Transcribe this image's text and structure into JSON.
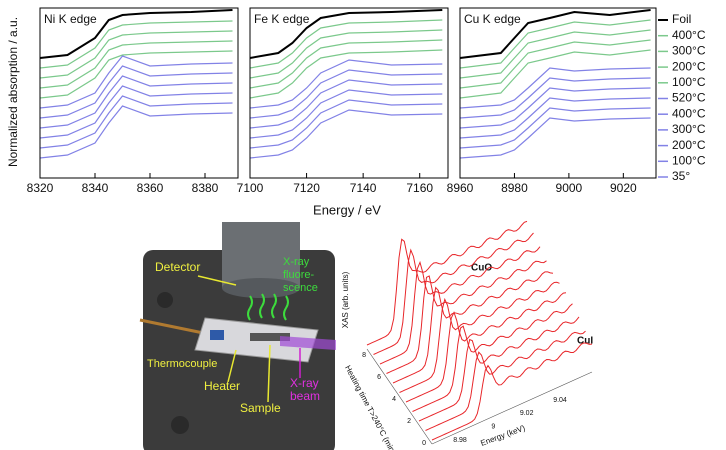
{
  "chart_data": [
    {
      "type": "line",
      "title": "Ni K edge",
      "y_label": "Normalized absorption / a.u.",
      "x": [
        8320,
        8330,
        8340,
        8345,
        8350,
        8360,
        8375,
        8390
      ],
      "xlim": [
        8320,
        8392
      ],
      "xticks": [
        8320,
        8340,
        8360,
        8380
      ],
      "ylim": [
        0,
        17
      ],
      "series": [
        {
          "name": "Foil",
          "color": "#000000",
          "values": [
            12,
            12.3,
            14,
            15.8,
            16.3,
            16.5,
            16.6,
            16.8
          ]
        },
        {
          "name": "400°C",
          "color": "#7cc98c",
          "values": [
            11,
            11.3,
            13,
            14.8,
            15.3,
            15.5,
            15.6,
            15.7
          ]
        },
        {
          "name": "300°C",
          "color": "#7cc98c",
          "values": [
            10,
            10.3,
            12,
            13.8,
            14.3,
            14.5,
            14.6,
            14.7
          ]
        },
        {
          "name": "200°C",
          "color": "#7cc98c",
          "values": [
            9,
            9.3,
            11,
            12.8,
            13.3,
            13.5,
            13.6,
            13.7
          ]
        },
        {
          "name": "100°C",
          "color": "#7cc98c",
          "values": [
            8,
            8.3,
            10,
            11.8,
            12.3,
            12.5,
            12.6,
            12.7
          ]
        },
        {
          "name": "520°C",
          "color": "#8282e6",
          "values": [
            7,
            7.3,
            8.5,
            10.5,
            12.2,
            11.2,
            11.4,
            11.5
          ]
        },
        {
          "name": "400°C",
          "color": "#8282e6",
          "values": [
            6,
            6.3,
            7.5,
            9.5,
            11.2,
            10.2,
            10.4,
            10.5
          ]
        },
        {
          "name": "300°C",
          "color": "#8282e6",
          "values": [
            5,
            5.3,
            6.5,
            8.5,
            10.2,
            9.2,
            9.4,
            9.5
          ]
        },
        {
          "name": "200°C",
          "color": "#8282e6",
          "values": [
            4,
            4.3,
            5.5,
            7.5,
            9.2,
            8.2,
            8.4,
            8.5
          ]
        },
        {
          "name": "100°C",
          "color": "#8282e6",
          "values": [
            3,
            3.3,
            4.5,
            6.5,
            8.2,
            7.2,
            7.4,
            7.5
          ]
        },
        {
          "name": "35°",
          "color": "#8282e6",
          "values": [
            2,
            2.3,
            3.5,
            5.5,
            7.2,
            6.2,
            6.4,
            6.5
          ]
        }
      ]
    },
    {
      "type": "line",
      "title": "Fe K edge",
      "x_label": "Energy / eV",
      "x": [
        7100,
        7110,
        7115,
        7120,
        7125,
        7135,
        7150,
        7168
      ],
      "xlim": [
        7100,
        7170
      ],
      "xticks": [
        7100,
        7120,
        7140,
        7160
      ],
      "ylim": [
        0,
        17
      ],
      "series": [
        {
          "name": "Foil",
          "color": "#000000",
          "values": [
            12,
            12.5,
            13.5,
            15,
            16,
            16.5,
            16.6,
            16.8
          ]
        },
        {
          "name": "400°C",
          "color": "#7cc98c",
          "values": [
            11,
            11.5,
            12.5,
            14,
            15,
            15.5,
            15.6,
            15.8
          ]
        },
        {
          "name": "300°C",
          "color": "#7cc98c",
          "values": [
            10,
            10.5,
            11.5,
            13,
            14,
            14.5,
            14.6,
            14.8
          ]
        },
        {
          "name": "200°C",
          "color": "#7cc98c",
          "values": [
            9,
            9.5,
            10.5,
            12,
            13,
            13.5,
            13.6,
            13.8
          ]
        },
        {
          "name": "100°C",
          "color": "#7cc98c",
          "values": [
            8,
            8.5,
            9.5,
            11,
            12,
            12.5,
            12.6,
            12.8
          ]
        },
        {
          "name": "520°C",
          "color": "#8282e6",
          "values": [
            7,
            7.3,
            7.8,
            9,
            10.5,
            11.8,
            11.3,
            11.4
          ]
        },
        {
          "name": "400°C",
          "color": "#8282e6",
          "values": [
            6,
            6.3,
            6.8,
            8,
            9.5,
            10.8,
            10.3,
            10.4
          ]
        },
        {
          "name": "300°C",
          "color": "#8282e6",
          "values": [
            5,
            5.3,
            5.8,
            7,
            8.5,
            9.8,
            9.3,
            9.4
          ]
        },
        {
          "name": "200°C",
          "color": "#8282e6",
          "values": [
            4,
            4.3,
            4.8,
            6,
            7.5,
            8.8,
            8.3,
            8.4
          ]
        },
        {
          "name": "100°C",
          "color": "#8282e6",
          "values": [
            3,
            3.3,
            3.8,
            5,
            6.5,
            7.8,
            7.3,
            7.4
          ]
        },
        {
          "name": "35°",
          "color": "#8282e6",
          "values": [
            2,
            2.3,
            2.8,
            4,
            5.5,
            6.8,
            6.3,
            6.4
          ]
        }
      ]
    },
    {
      "type": "line",
      "title": "Cu K edge",
      "x": [
        8960,
        8975,
        8980,
        8985,
        8993,
        9002,
        9015,
        9030
      ],
      "xlim": [
        8960,
        9032
      ],
      "xticks": [
        8960,
        8980,
        9000,
        9020
      ],
      "ylim": [
        0,
        17
      ],
      "series": [
        {
          "name": "Foil",
          "color": "#000000",
          "values": [
            12,
            12.5,
            14,
            15.5,
            16,
            16.6,
            16.3,
            16.8
          ]
        },
        {
          "name": "400°C",
          "color": "#7cc98c",
          "values": [
            11,
            11.5,
            13,
            14.5,
            15,
            15.6,
            15.3,
            15.8
          ]
        },
        {
          "name": "300°C",
          "color": "#7cc98c",
          "values": [
            10,
            10.5,
            12,
            13.5,
            14,
            14.6,
            14.3,
            14.8
          ]
        },
        {
          "name": "200°C",
          "color": "#7cc98c",
          "values": [
            9,
            9.5,
            11,
            12.5,
            13,
            13.6,
            13.3,
            13.8
          ]
        },
        {
          "name": "100°C",
          "color": "#7cc98c",
          "values": [
            8,
            8.5,
            10,
            11.5,
            12,
            12.6,
            12.3,
            12.8
          ]
        },
        {
          "name": "520°C",
          "color": "#8282e6",
          "values": [
            7,
            7.3,
            7.8,
            9,
            11,
            10.7,
            10.9,
            11
          ]
        },
        {
          "name": "400°C",
          "color": "#8282e6",
          "values": [
            6,
            6.3,
            6.8,
            8,
            10,
            9.7,
            9.9,
            10
          ]
        },
        {
          "name": "300°C",
          "color": "#8282e6",
          "values": [
            5,
            5.3,
            5.8,
            7,
            9,
            8.7,
            8.9,
            9
          ]
        },
        {
          "name": "200°C",
          "color": "#8282e6",
          "values": [
            4,
            4.3,
            4.8,
            6,
            8,
            7.7,
            7.9,
            8
          ]
        },
        {
          "name": "100°C",
          "color": "#8282e6",
          "values": [
            3,
            3.3,
            3.8,
            5,
            7,
            6.7,
            6.9,
            7
          ]
        },
        {
          "name": "35°",
          "color": "#8282e6",
          "values": [
            2,
            2.3,
            2.8,
            4,
            6,
            5.7,
            5.9,
            6
          ]
        }
      ]
    }
  ],
  "setup_figure": {
    "detector": "Detector",
    "fluorescence": [
      "X-ray",
      "fluore-",
      "scence"
    ],
    "thermocouple": "Thermocouple",
    "heater": "Heater",
    "sample": "Sample",
    "beam": [
      "X-ray",
      "beam"
    ]
  },
  "waterfall_plot": {
    "y_label": "XAS (arb. units)",
    "time_label": "Heating time T>240°C (min)",
    "energy_label": "Energy (keV)",
    "top_label": "CuO",
    "bottom_label": "CuI",
    "time_ticks": [
      0,
      2,
      4,
      6,
      8
    ],
    "energy_ticks": [
      8.98,
      9,
      9.02,
      9.04
    ]
  }
}
